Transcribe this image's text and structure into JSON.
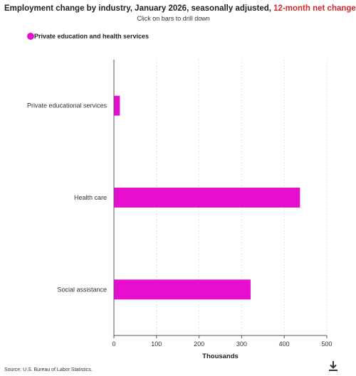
{
  "header": {
    "title_main": "Employment change by industry, January 2026, seasonally adjusted, ",
    "title_highlight": "12-month net change",
    "subtitle": "Click on bars to drill down"
  },
  "footer": {
    "source": "Source: U.S. Bureau of Labor Statistics."
  },
  "colors": {
    "bar": "#e60fcf",
    "highlight": "#d62728",
    "grid": "#e3e3e3",
    "axis": "#555555"
  },
  "chart_data": {
    "type": "bar",
    "orientation": "horizontal",
    "categories": [
      "Private educational services",
      "Health care",
      "Social assistance"
    ],
    "series": [
      {
        "name": "Private education and health services",
        "values": [
          14,
          437,
          321
        ]
      }
    ],
    "xlabel": "Thousands",
    "xlim": [
      0,
      500
    ],
    "xticks": [
      0,
      100,
      200,
      300,
      400,
      500
    ],
    "grid": true,
    "legend": "top-left"
  },
  "icons": {
    "download": "download-icon"
  }
}
